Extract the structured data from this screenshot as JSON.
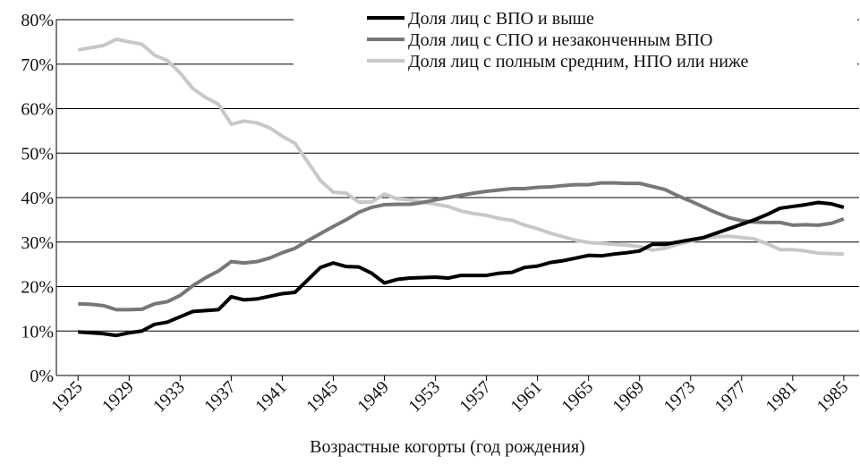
{
  "chart_data": {
    "type": "line",
    "xlabel": "Возрастные когорты (год рождения)",
    "x": [
      1925,
      1926,
      1927,
      1928,
      1929,
      1930,
      1931,
      1932,
      1933,
      1934,
      1935,
      1936,
      1937,
      1938,
      1939,
      1940,
      1941,
      1942,
      1943,
      1944,
      1945,
      1946,
      1947,
      1948,
      1949,
      1950,
      1951,
      1952,
      1953,
      1954,
      1955,
      1956,
      1957,
      1958,
      1959,
      1960,
      1961,
      1962,
      1963,
      1964,
      1965,
      1966,
      1967,
      1968,
      1969,
      1970,
      1971,
      1972,
      1973,
      1974,
      1975,
      1976,
      1977,
      1978,
      1979,
      1980,
      1981,
      1982,
      1983,
      1984,
      1985
    ],
    "series": [
      {
        "name": "Доля лиц с ВПО и выше",
        "color": "#000000",
        "values": [
          9.8,
          9.6,
          9.4,
          9.0,
          9.6,
          10.0,
          11.5,
          12.0,
          13.2,
          14.4,
          14.6,
          14.8,
          17.7,
          17.0,
          17.2,
          17.8,
          18.4,
          18.7,
          21.5,
          24.3,
          25.3,
          24.5,
          24.4,
          23.0,
          20.8,
          21.6,
          21.9,
          22.0,
          22.1,
          21.9,
          22.5,
          22.5,
          22.5,
          23.0,
          23.2,
          24.3,
          24.6,
          25.4,
          25.8,
          26.4,
          27.0,
          26.9,
          27.3,
          27.6,
          28.0,
          29.5,
          29.5,
          30.0,
          30.5,
          31.0,
          32.0,
          33.0,
          34.0,
          35.0,
          36.2,
          37.6,
          38.0,
          38.4,
          38.9,
          38.6,
          37.8
        ]
      },
      {
        "name": "Доля лиц с СПО и незаконченным ВПО",
        "color": "#777777",
        "values": [
          16.1,
          16.0,
          15.7,
          14.8,
          14.8,
          14.9,
          16.1,
          16.6,
          18.0,
          20.2,
          22.0,
          23.5,
          25.6,
          25.3,
          25.6,
          26.4,
          27.6,
          28.6,
          30.3,
          31.9,
          33.5,
          35.0,
          36.7,
          37.8,
          38.4,
          38.5,
          38.5,
          38.9,
          39.5,
          40.0,
          40.5,
          41.0,
          41.4,
          41.7,
          42.0,
          42.0,
          42.3,
          42.4,
          42.7,
          42.9,
          42.9,
          43.3,
          43.3,
          43.2,
          43.2,
          42.5,
          41.8,
          40.4,
          39.2,
          37.9,
          36.6,
          35.5,
          34.8,
          34.5,
          34.4,
          34.4,
          33.8,
          33.9,
          33.8,
          34.2,
          35.2
        ]
      },
      {
        "name": "Доля лиц с полным средним, НПО или ниже",
        "color": "#c8c8c8",
        "values": [
          73.2,
          73.7,
          74.2,
          75.6,
          75.0,
          74.5,
          72.0,
          70.8,
          68.0,
          64.5,
          62.5,
          61.0,
          56.5,
          57.2,
          56.8,
          55.7,
          53.8,
          52.2,
          48.0,
          43.8,
          41.2,
          41.0,
          39.0,
          39.0,
          40.8,
          39.7,
          39.5,
          39.0,
          38.5,
          38.0,
          37.0,
          36.4,
          36.0,
          35.3,
          34.9,
          33.8,
          33.0,
          32.0,
          31.2,
          30.4,
          29.9,
          29.7,
          29.5,
          29.3,
          29.0,
          28.2,
          28.6,
          29.5,
          30.2,
          30.9,
          31.2,
          31.3,
          31.0,
          30.7,
          29.6,
          28.3,
          28.3,
          28.0,
          27.5,
          27.4,
          27.3
        ]
      }
    ],
    "xlim": [
      1923.3,
      1986.2
    ],
    "xticks": [
      1925,
      1929,
      1933,
      1937,
      1941,
      1945,
      1949,
      1953,
      1957,
      1961,
      1965,
      1969,
      1973,
      1977,
      1981,
      1985
    ],
    "ylim": [
      0,
      80
    ],
    "yticks": [
      {
        "value": 0,
        "label": "0%"
      },
      {
        "value": 10,
        "label": "10%"
      },
      {
        "value": 20,
        "label": "20%"
      },
      {
        "value": 30,
        "label": "30%"
      },
      {
        "value": 40,
        "label": "40%"
      },
      {
        "value": 50,
        "label": "50%"
      },
      {
        "value": 60,
        "label": "60%"
      },
      {
        "value": 70,
        "label": "70%"
      },
      {
        "value": 80,
        "label": "80%"
      }
    ],
    "grid": true,
    "legend": "top-right"
  }
}
